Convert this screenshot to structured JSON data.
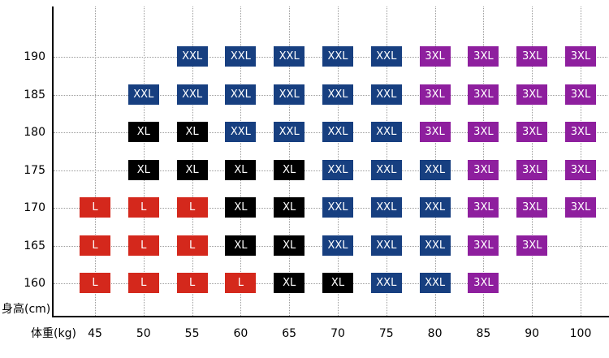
{
  "chart_data": {
    "type": "heatmap",
    "xlabel": "体重(kg)",
    "ylabel": "身高(cm)",
    "x_categories": [
      "45",
      "50",
      "55",
      "60",
      "65",
      "70",
      "75",
      "80",
      "85",
      "90",
      "100"
    ],
    "y_categories": [
      "190",
      "185",
      "180",
      "175",
      "170",
      "165",
      "160"
    ],
    "size_colors": {
      "L": "#d4281c",
      "XL": "#000000",
      "XXL": "#173f80",
      "3XL": "#8e1f9e"
    },
    "grid": "dotted",
    "gridline_color": "#9b9b9b",
    "axis_color": "#000000",
    "cells": [
      [
        "",
        "",
        "XXL",
        "XXL",
        "XXL",
        "XXL",
        "XXL",
        "3XL",
        "3XL",
        "3XL",
        "3XL"
      ],
      [
        "",
        "XXL",
        "XXL",
        "XXL",
        "XXL",
        "XXL",
        "XXL",
        "3XL",
        "3XL",
        "3XL",
        "3XL"
      ],
      [
        "",
        "XL",
        "XL",
        "XXL",
        "XXL",
        "XXL",
        "XXL",
        "3XL",
        "3XL",
        "3XL",
        "3XL"
      ],
      [
        "",
        "XL",
        "XL",
        "XL",
        "XL",
        "XXL",
        "XXL",
        "XXL",
        "3XL",
        "3XL",
        "3XL"
      ],
      [
        "L",
        "L",
        "L",
        "XL",
        "XL",
        "XXL",
        "XXL",
        "XXL",
        "3XL",
        "3XL",
        "3XL"
      ],
      [
        "L",
        "L",
        "L",
        "XL",
        "XL",
        "XXL",
        "XXL",
        "XXL",
        "3XL",
        "3XL",
        ""
      ],
      [
        "L",
        "L",
        "L",
        "L",
        "XL",
        "XL",
        "XXL",
        "XXL",
        "3XL",
        "",
        ""
      ]
    ]
  }
}
